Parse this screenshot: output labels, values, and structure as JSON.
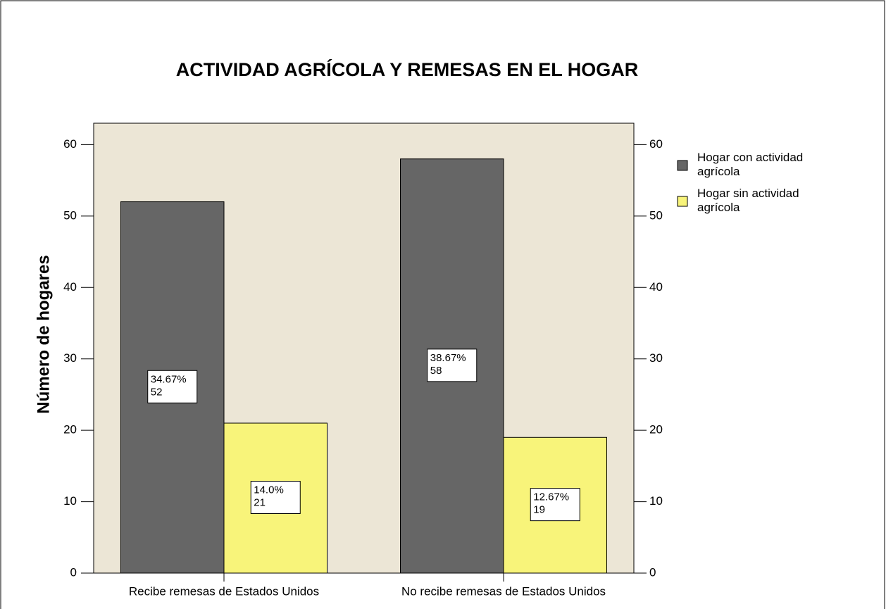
{
  "chart_data": {
    "type": "bar",
    "title": "ACTIVIDAD AGRÍCOLA Y REMESAS EN EL HOGAR",
    "y_label": "Número de hogares",
    "categories": [
      "Recibe remesas de Estados Unidos",
      "No recibe remesas de Estados Unidos"
    ],
    "series": [
      {
        "name": "Hogar con actividad agrícola",
        "color": "#666666",
        "values": [
          52,
          58
        ],
        "percent_labels": [
          "34.67%",
          "38.67%"
        ]
      },
      {
        "name": "Hogar sin actividad agrícola",
        "color": "#f8f47a",
        "values": [
          21,
          19
        ],
        "percent_labels": [
          "14.0%",
          "12.67%"
        ]
      }
    ],
    "ylim": [
      0,
      63
    ],
    "yticks": [
      0,
      10,
      20,
      30,
      40,
      50,
      60
    ],
    "y2lim": [
      0,
      63
    ],
    "y2ticks": [
      0,
      10,
      20,
      30,
      40,
      50,
      60
    ],
    "background": "#ece6d6",
    "legend": "right"
  }
}
